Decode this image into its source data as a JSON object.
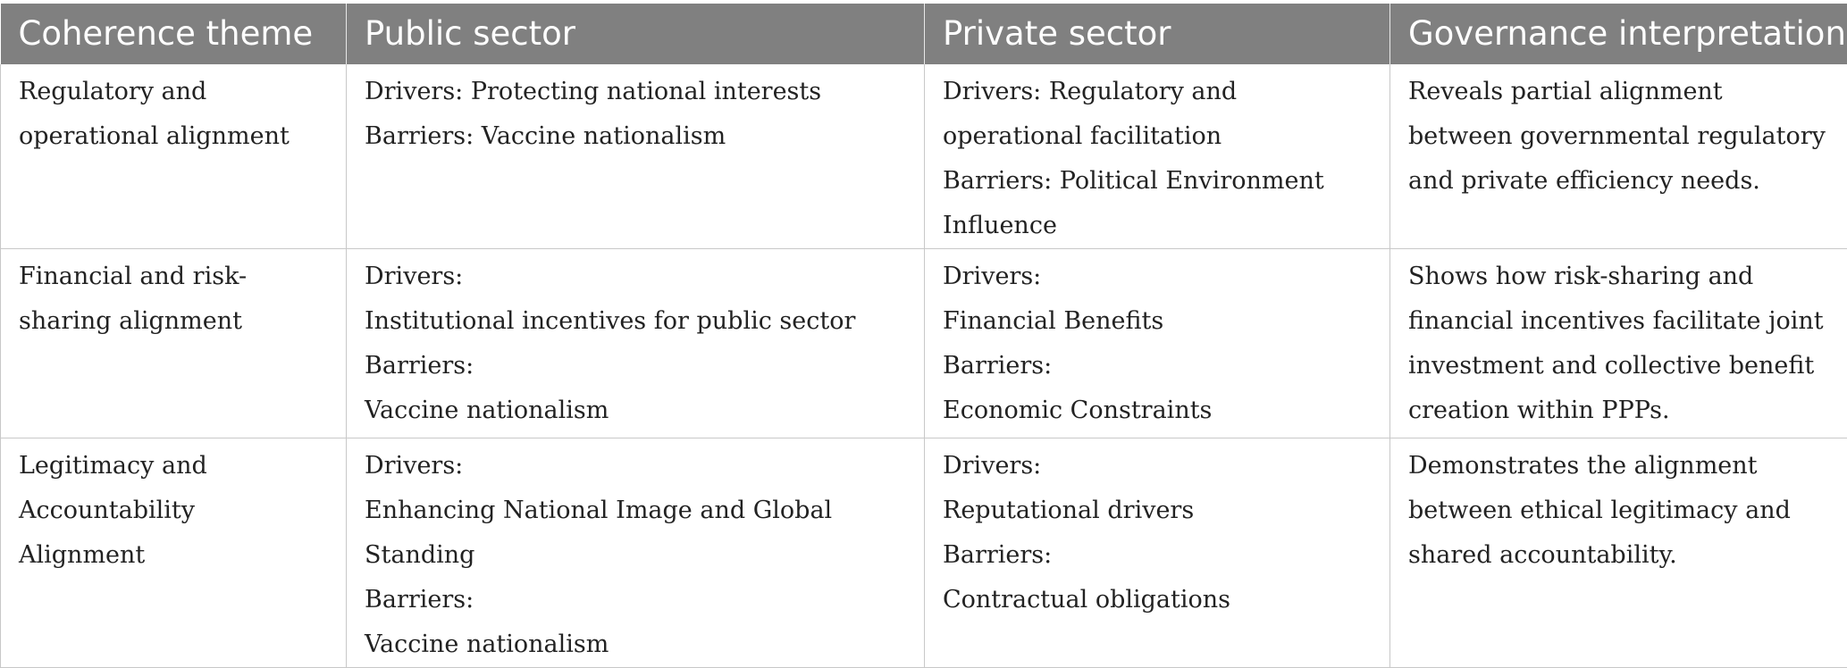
{
  "table": {
    "headers": [
      "Coherence theme",
      "Public sector",
      "Private sector",
      "Governance interpretation"
    ],
    "rows": [
      {
        "theme": "Regulatory and operational alignment",
        "public": [
          "Drivers: Protecting national interests",
          "Barriers: Vaccine nationalism"
        ],
        "private": [
          "Drivers: Regulatory and operational facilitation",
          "Barriers: Political Environment Influence"
        ],
        "interpretation": "Reveals partial alignment between governmental regulatory and private efficiency needs."
      },
      {
        "theme": "Financial and risk-sharing alignment",
        "public": [
          "Drivers:",
          "Institutional incentives for public sector",
          "Barriers:",
          "Vaccine nationalism"
        ],
        "private": [
          "Drivers:",
          "Financial Benefits",
          "Barriers:",
          "Economic Constraints"
        ],
        "interpretation": "Shows how risk-sharing and financial incentives facilitate joint investment and collective benefit creation within PPPs."
      },
      {
        "theme": "Legitimacy and Accountability Alignment",
        "public": [
          "Drivers:",
          "Enhancing National Image and Global Standing",
          "Barriers:",
          "Vaccine nationalism"
        ],
        "private": [
          "Drivers:",
          "Reputational drivers",
          "Barriers:",
          "Contractual obligations"
        ],
        "interpretation": "Demonstrates the alignment between ethical legitimacy and shared accountability."
      }
    ]
  }
}
